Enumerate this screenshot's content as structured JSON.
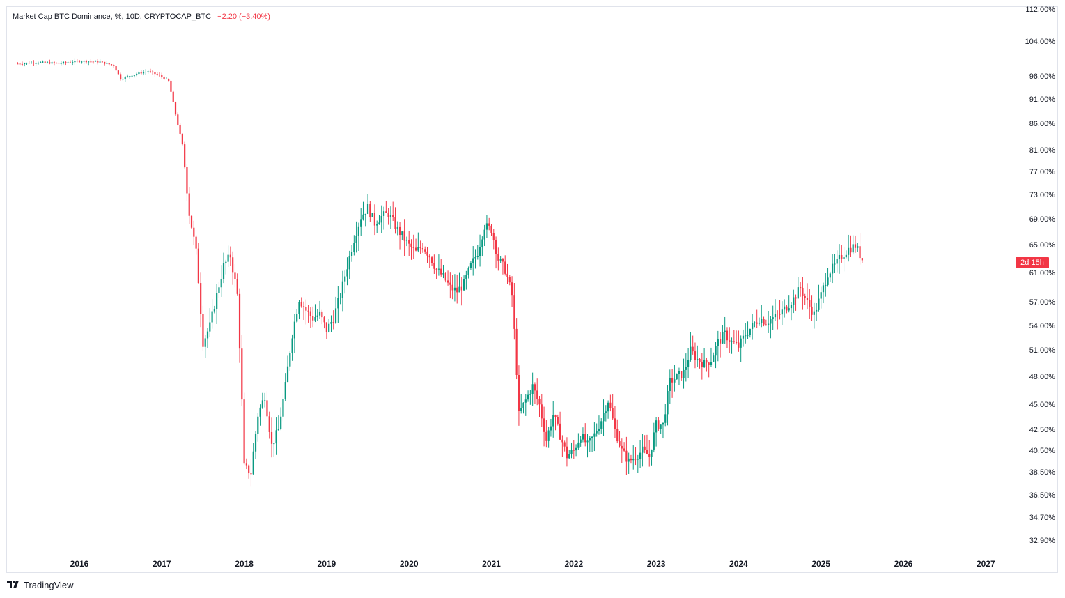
{
  "legend": {
    "title": "Market Cap BTC Dominance, %, 10D, CRYPTOCAP_BTC",
    "change": "−2.20 (−3.40%)"
  },
  "price_tag": "2d 15h",
  "brand": {
    "logo": "𝟏𝟕",
    "name": "TradingView",
    "icon": "tradingview-logo"
  },
  "colors": {
    "up": "#089981",
    "down": "#f23645",
    "grid": "#e0e3eb"
  },
  "chart_data": {
    "type": "candlestick",
    "title": "Market Cap BTC Dominance, %, 10D, CRYPTOCAP_BTC",
    "y_scale": "log",
    "y_unit": "%",
    "y_ticks": [
      "112.00%",
      "104.00%",
      "96.00%",
      "91.00%",
      "86.00%",
      "81.00%",
      "77.00%",
      "73.00%",
      "69.00%",
      "65.00%",
      "61.00%",
      "57.00%",
      "54.00%",
      "51.00%",
      "48.00%",
      "45.00%",
      "42.50%",
      "40.50%",
      "38.50%",
      "36.50%",
      "34.70%",
      "32.90%"
    ],
    "y_tick_values": [
      112,
      104,
      96,
      91,
      86,
      81,
      77,
      73,
      69,
      65,
      61,
      57,
      54,
      51,
      48,
      45,
      42.5,
      40.5,
      38.5,
      36.5,
      34.7,
      32.9
    ],
    "x_ticks": [
      "2016",
      "2017",
      "2018",
      "2019",
      "2020",
      "2021",
      "2022",
      "2023",
      "2024",
      "2025",
      "2026",
      "2027"
    ],
    "last_change": "−2.20 (−3.40%)",
    "close_series": [
      [
        "2015-04",
        98.9
      ],
      [
        "2015-07",
        99.2
      ],
      [
        "2015-10",
        99.0
      ],
      [
        "2016-01",
        99.5
      ],
      [
        "2016-04",
        99.3
      ],
      [
        "2016-06",
        98.5
      ],
      [
        "2016-07",
        95.5
      ],
      [
        "2016-09",
        96.5
      ],
      [
        "2016-11",
        97.2
      ],
      [
        "2017-01",
        96.0
      ],
      [
        "2017-02",
        95.0
      ],
      [
        "2017-03",
        88.0
      ],
      [
        "2017-04",
        82.0
      ],
      [
        "2017-05",
        70.0
      ],
      [
        "2017-06",
        64.0
      ],
      [
        "2017-07",
        52.0
      ],
      [
        "2017-08",
        54.0
      ],
      [
        "2017-09",
        58.0
      ],
      [
        "2017-10",
        62.0
      ],
      [
        "2017-11",
        63.5
      ],
      [
        "2017-12",
        58.0
      ],
      [
        "2018-01",
        39.0
      ],
      [
        "2018-02",
        38.5
      ],
      [
        "2018-03",
        44.0
      ],
      [
        "2018-04",
        46.0
      ],
      [
        "2018-05",
        41.0
      ],
      [
        "2018-06",
        42.5
      ],
      [
        "2018-07",
        47.0
      ],
      [
        "2018-08",
        53.0
      ],
      [
        "2018-09",
        57.5
      ],
      [
        "2018-10",
        56.0
      ],
      [
        "2018-11",
        55.0
      ],
      [
        "2018-12",
        55.5
      ],
      [
        "2019-01",
        53.5
      ],
      [
        "2019-02",
        55.0
      ],
      [
        "2019-03",
        58.0
      ],
      [
        "2019-04",
        62.0
      ],
      [
        "2019-05",
        66.0
      ],
      [
        "2019-06",
        69.5
      ],
      [
        "2019-07",
        71.0
      ],
      [
        "2019-08",
        68.5
      ],
      [
        "2019-09",
        69.5
      ],
      [
        "2019-10",
        70.0
      ],
      [
        "2019-11",
        68.0
      ],
      [
        "2019-12",
        66.5
      ],
      [
        "2020-01",
        65.0
      ],
      [
        "2020-02",
        64.0
      ],
      [
        "2020-03",
        65.0
      ],
      [
        "2020-04",
        63.5
      ],
      [
        "2020-05",
        61.5
      ],
      [
        "2020-06",
        60.5
      ],
      [
        "2020-07",
        59.0
      ],
      [
        "2020-08",
        58.5
      ],
      [
        "2020-09",
        59.5
      ],
      [
        "2020-10",
        62.0
      ],
      [
        "2020-11",
        64.0
      ],
      [
        "2020-12",
        68.0
      ],
      [
        "2021-01",
        67.5
      ],
      [
        "2021-02",
        63.0
      ],
      [
        "2021-03",
        61.5
      ],
      [
        "2021-04",
        58.0
      ],
      [
        "2021-05",
        44.0
      ],
      [
        "2021-06",
        45.5
      ],
      [
        "2021-07",
        47.0
      ],
      [
        "2021-08",
        45.0
      ],
      [
        "2021-09",
        41.5
      ],
      [
        "2021-10",
        44.0
      ],
      [
        "2021-11",
        42.0
      ],
      [
        "2021-12",
        40.0
      ],
      [
        "2022-01",
        40.5
      ],
      [
        "2022-02",
        42.0
      ],
      [
        "2022-03",
        41.0
      ],
      [
        "2022-04",
        42.0
      ],
      [
        "2022-05",
        43.5
      ],
      [
        "2022-06",
        45.5
      ],
      [
        "2022-07",
        42.5
      ],
      [
        "2022-08",
        40.5
      ],
      [
        "2022-09",
        39.5
      ],
      [
        "2022-10",
        40.0
      ],
      [
        "2022-11",
        40.5
      ],
      [
        "2022-12",
        40.0
      ],
      [
        "2023-01",
        43.0
      ],
      [
        "2023-02",
        43.0
      ],
      [
        "2023-03",
        47.5
      ],
      [
        "2023-04",
        48.0
      ],
      [
        "2023-05",
        48.5
      ],
      [
        "2023-06",
        51.0
      ],
      [
        "2023-07",
        50.0
      ],
      [
        "2023-08",
        49.5
      ],
      [
        "2023-09",
        50.0
      ],
      [
        "2023-10",
        52.0
      ],
      [
        "2023-11",
        53.0
      ],
      [
        "2023-12",
        52.0
      ],
      [
        "2024-01",
        51.5
      ],
      [
        "2024-02",
        53.0
      ],
      [
        "2024-03",
        54.0
      ],
      [
        "2024-04",
        55.0
      ],
      [
        "2024-05",
        54.5
      ],
      [
        "2024-06",
        55.0
      ],
      [
        "2024-07",
        55.5
      ],
      [
        "2024-08",
        56.5
      ],
      [
        "2024-09",
        57.5
      ],
      [
        "2024-10",
        59.0
      ],
      [
        "2024-11",
        57.0
      ],
      [
        "2024-12",
        55.5
      ],
      [
        "2025-01",
        58.0
      ],
      [
        "2025-02",
        61.0
      ],
      [
        "2025-03",
        62.0
      ],
      [
        "2025-04",
        63.5
      ],
      [
        "2025-05",
        64.5
      ],
      [
        "2025-06",
        65.0
      ],
      [
        "2025-07",
        63.0
      ]
    ]
  }
}
